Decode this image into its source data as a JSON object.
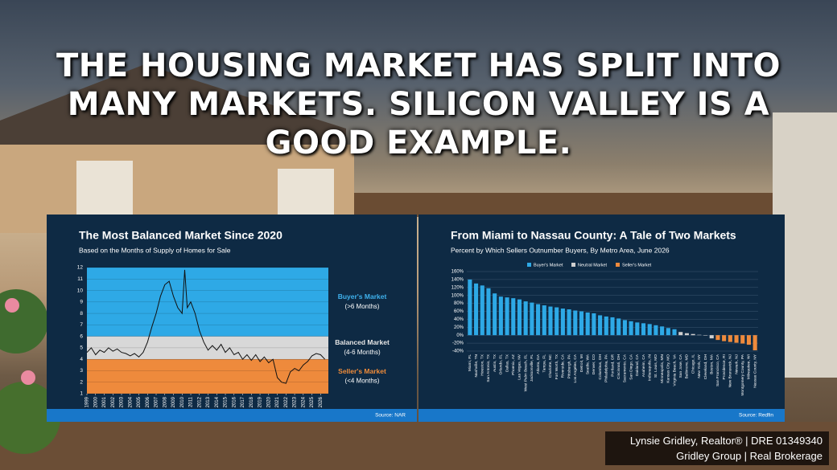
{
  "headline": "THE HOUSING MARKET HAS SPLIT INTO MANY MARKETS. SILICON VALLEY IS A GOOD EXAMPLE.",
  "credit": {
    "line1": "Lynsie Gridley, Realtor® | DRE 01349340",
    "line2": "Gridley Group | Real Brokerage"
  },
  "chart_data": [
    {
      "type": "line",
      "title": "The Most Balanced Market Since 2020",
      "subtitle": "Based on the Months of Supply of Homes for Sale",
      "source": "Source: NAR",
      "color": "#111111",
      "x": [
        1999,
        1999.5,
        2000,
        2000.5,
        2001,
        2001.5,
        2002,
        2002.5,
        2003,
        2003.5,
        2004,
        2004.5,
        2005,
        2005.5,
        2006,
        2006.5,
        2007,
        2007.5,
        2008,
        2008.5,
        2009,
        2009.5,
        2010,
        2010.3,
        2010.6,
        2011,
        2011.5,
        2012,
        2012.5,
        2013,
        2013.5,
        2014,
        2014.5,
        2015,
        2015.5,
        2016,
        2016.5,
        2017,
        2017.5,
        2018,
        2018.5,
        2019,
        2019.5,
        2020,
        2020.5,
        2021,
        2021.5,
        2022,
        2022.5,
        2023,
        2023.5,
        2024,
        2024.5,
        2025,
        2025.5,
        2026,
        2026.5
      ],
      "values": [
        4.6,
        5.0,
        4.4,
        4.8,
        4.6,
        5.0,
        4.7,
        4.9,
        4.6,
        4.5,
        4.3,
        4.5,
        4.2,
        4.6,
        5.5,
        6.8,
        8.0,
        9.5,
        10.5,
        10.8,
        9.5,
        8.5,
        8.0,
        11.8,
        8.5,
        9.0,
        8.0,
        6.5,
        5.5,
        4.8,
        5.2,
        4.8,
        5.3,
        4.6,
        5.0,
        4.4,
        4.6,
        4.0,
        4.4,
        3.9,
        4.4,
        3.8,
        4.2,
        3.7,
        4.0,
        2.4,
        2.0,
        1.9,
        2.9,
        3.2,
        3.0,
        3.5,
        3.8,
        4.3,
        4.5,
        4.4,
        4.0
      ],
      "xlim": [
        1999,
        2026.9
      ],
      "xticks": [
        1999,
        2000,
        2001,
        2002,
        2003,
        2004,
        2005,
        2006,
        2007,
        2008,
        2009,
        2010,
        2011,
        2012,
        2013,
        2014,
        2015,
        2016,
        2017,
        2018,
        2019,
        2020,
        2021,
        2022,
        2023,
        2024,
        2025,
        2026
      ],
      "ylim": [
        1,
        12
      ],
      "yticks": [
        1,
        2,
        3,
        4,
        5,
        6,
        7,
        8,
        9,
        10,
        11,
        12
      ],
      "grid": true,
      "bands": [
        {
          "from": 6,
          "to": 12,
          "color": "#2ea9e6",
          "label": "Buyer's Market",
          "sublabel": "(>6 Months)",
          "label_color": "#3fb2ee"
        },
        {
          "from": 4,
          "to": 6,
          "color": "#d8d8d8",
          "label": "Balanced Market",
          "sublabel": "(4-6 Months)",
          "label_color": "#e6e6e6"
        },
        {
          "from": 1,
          "to": 4,
          "color": "#ee8a3c",
          "label": "Seller's Market",
          "sublabel": "(<4 Months)",
          "label_color": "#f08c3a"
        }
      ]
    },
    {
      "type": "bar",
      "title": "From Miami to Nassau County: A Tale of Two Markets",
      "subtitle": "Percent by Which Sellers Outnumber Buyers, By Metro Area, June 2026",
      "source": "Source: Redfin",
      "categories": [
        "Miami, FL",
        "Nashville, TN",
        "Houston, TX",
        "San Antonio, TX",
        "Austin, TX",
        "Orlando, FL",
        "Dallas, TX",
        "Phoenix, AZ",
        "Las Vegas, NV",
        "West Palm Beach, FL",
        "Jacksonville, FL",
        "Atlanta, GA",
        "Tampa, FL",
        "Charlotte, NC",
        "Fort Worth, TX",
        "Riverside, CA",
        "Pittsburgh, PA",
        "Los Angeles, CA",
        "Detroit, MI",
        "Seattle, WA",
        "Denver, CO",
        "Columbus, OH",
        "Philadelphia, PA",
        "Portland, OR",
        "Cincinnati, OH",
        "Sacramento, CA",
        "San Diego, CA",
        "Oakland, CA",
        "Anaheim, CA",
        "Indianapolis, IN",
        "St. Louis, MO",
        "Minneapolis, MN",
        "Kansas City, MO",
        "Virginia Beach, VA",
        "San Jose, CA",
        "Baltimore, MD",
        "Chicago, IL",
        "New York, NY",
        "Cleveland, OH",
        "Boston, MA",
        "San Francisco, CA",
        "Providence, RI",
        "New Brunswick, NJ",
        "Newark, NJ",
        "Montgomery County, PA",
        "Milwaukee, WI",
        "Nassau County, NY"
      ],
      "series": [
        {
          "name": "Buyer's Market",
          "color": "#2ea9e6",
          "values": [
            140,
            130,
            125,
            118,
            105,
            97,
            95,
            93,
            90,
            85,
            82,
            78,
            75,
            72,
            70,
            67,
            65,
            62,
            60,
            57,
            55,
            50,
            47,
            45,
            42,
            38,
            35,
            32,
            30,
            28,
            25,
            22,
            18,
            15,
            null,
            null,
            null,
            null,
            null,
            null,
            null,
            null,
            null,
            null,
            null,
            null,
            null
          ]
        },
        {
          "name": "Neutral Market",
          "color": "#cfcfcf",
          "values": [
            null,
            null,
            null,
            null,
            null,
            null,
            null,
            null,
            null,
            null,
            null,
            null,
            null,
            null,
            null,
            null,
            null,
            null,
            null,
            null,
            null,
            null,
            null,
            null,
            null,
            null,
            null,
            null,
            null,
            null,
            null,
            null,
            null,
            null,
            8,
            5,
            3,
            1,
            -1,
            -8,
            null,
            null,
            null,
            null,
            null,
            null,
            null
          ]
        },
        {
          "name": "Seller's Market",
          "color": "#ee8a3c",
          "values": [
            null,
            null,
            null,
            null,
            null,
            null,
            null,
            null,
            null,
            null,
            null,
            null,
            null,
            null,
            null,
            null,
            null,
            null,
            null,
            null,
            null,
            null,
            null,
            null,
            null,
            null,
            null,
            null,
            null,
            null,
            null,
            null,
            null,
            null,
            null,
            null,
            null,
            null,
            null,
            null,
            -12,
            -15,
            -17,
            -19,
            -21,
            -24,
            -38
          ]
        }
      ],
      "ylim": [
        -40,
        160
      ],
      "yticks": [
        {
          "value": -40,
          "label": "-40%"
        },
        {
          "value": -20,
          "label": "-20%"
        },
        {
          "value": 0,
          "label": "0%"
        },
        {
          "value": 20,
          "label": "20%"
        },
        {
          "value": 40,
          "label": "40%"
        },
        {
          "value": 60,
          "label": "60%"
        },
        {
          "value": 80,
          "label": "80%"
        },
        {
          "value": 100,
          "label": "100%"
        },
        {
          "value": 120,
          "label": "120%"
        },
        {
          "value": 140,
          "label": "140%"
        },
        {
          "value": 160,
          "label": "160%"
        }
      ],
      "grid": true
    }
  ]
}
